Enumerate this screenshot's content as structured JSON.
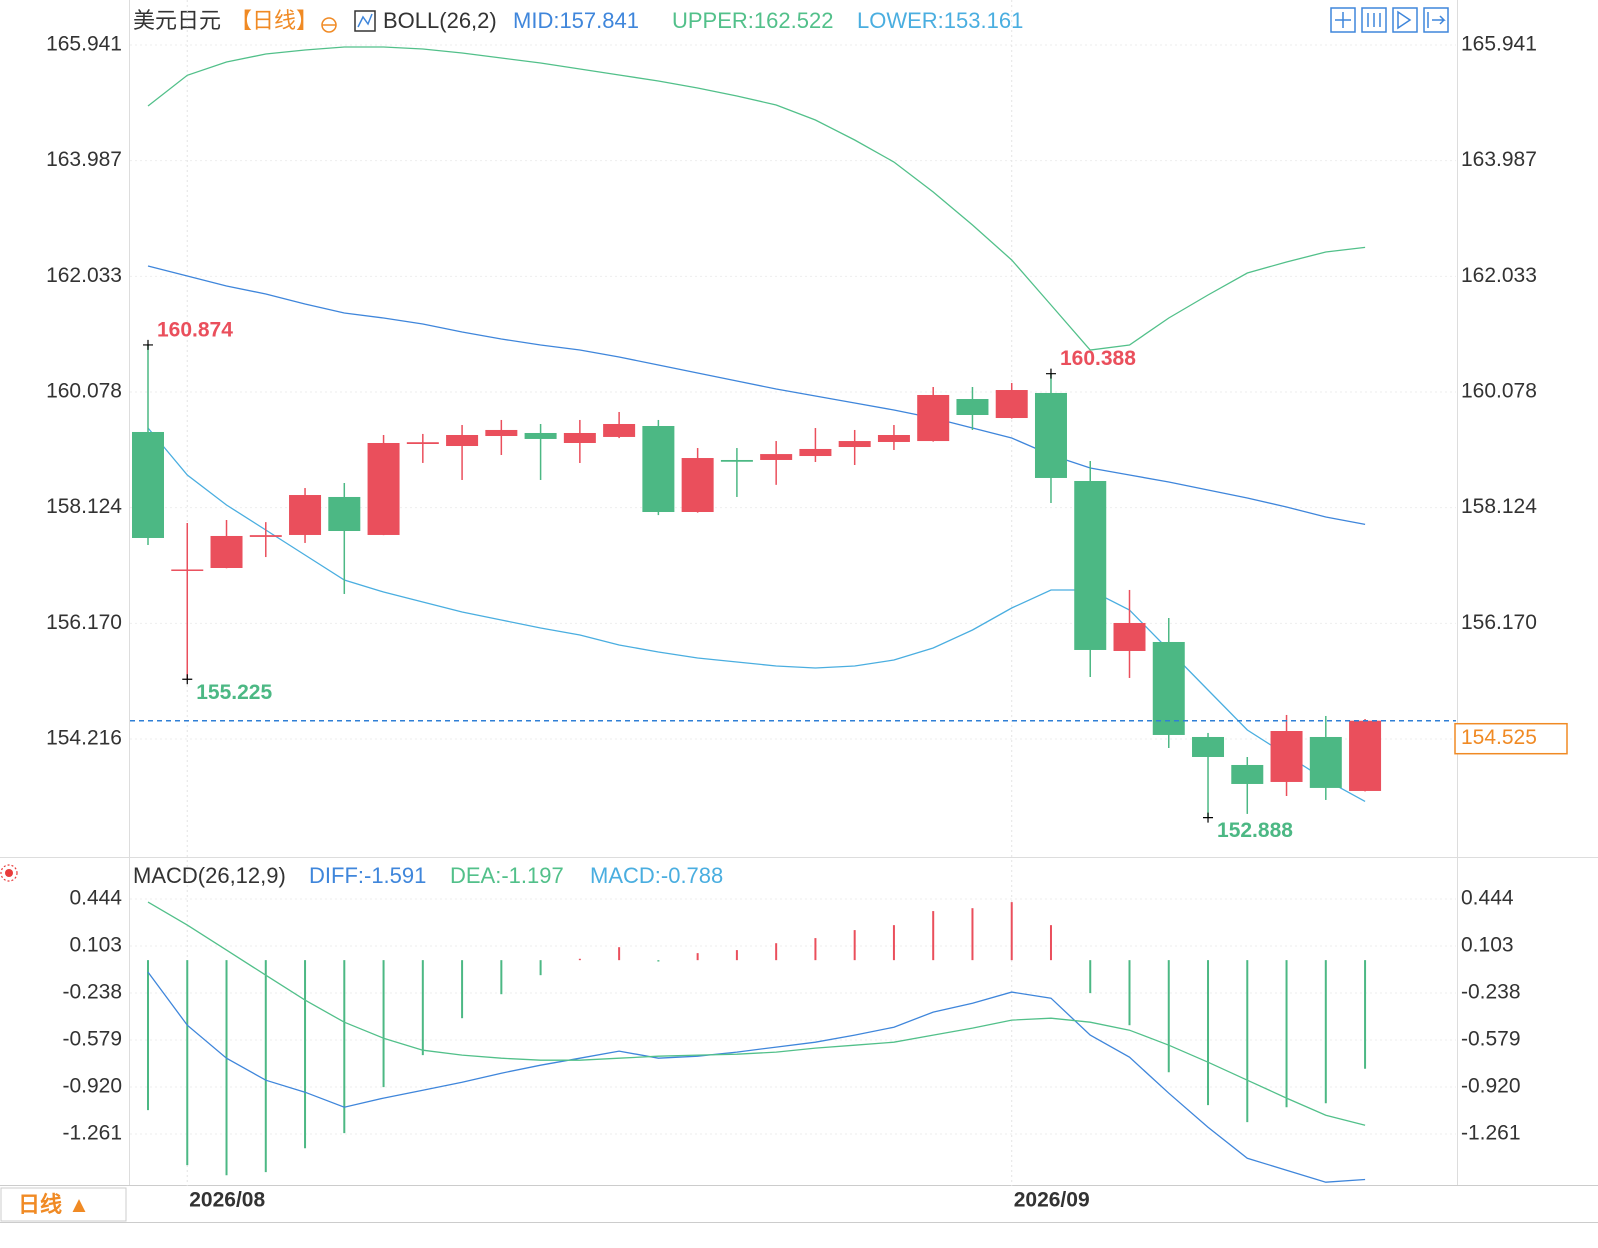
{
  "header": {
    "symbol": "美元日元",
    "period": "【日线】"
  },
  "chart_data": [
    {
      "type": "candlestick",
      "indicator": "BOLL(26,2)",
      "categories": [
        null,
        "2026/08",
        null,
        null,
        null,
        null,
        null,
        null,
        null,
        null,
        null,
        null,
        null,
        null,
        null,
        null,
        null,
        null,
        null,
        null,
        null,
        null,
        "2026/09",
        null,
        null,
        null,
        null,
        null,
        null,
        null,
        null,
        null
      ],
      "open": [
        159.403,
        157.06,
        157.105,
        157.63,
        157.663,
        158.305,
        157.663,
        159.2,
        159.166,
        159.335,
        159.386,
        159.217,
        159.319,
        159.504,
        158.051,
        158.93,
        158.93,
        158.997,
        159.149,
        159.234,
        159.25,
        159.96,
        159.639,
        160.062,
        158.575,
        155.703,
        155.855,
        154.25,
        153.777,
        153.49,
        154.25,
        153.338
      ],
      "high": [
        160.874,
        157.865,
        157.916,
        157.88,
        158.456,
        158.541,
        159.352,
        159.37,
        159.521,
        159.606,
        159.538,
        159.606,
        159.741,
        159.606,
        159.132,
        159.132,
        159.25,
        159.47,
        159.437,
        159.521,
        160.163,
        160.163,
        160.231,
        160.388,
        158.913,
        156.734,
        156.26,
        154.318,
        153.912,
        154.622,
        154.605,
        154.554
      ],
      "low": [
        157.494,
        155.225,
        157.1,
        157.29,
        157.528,
        156.666,
        157.66,
        158.88,
        158.592,
        159.014,
        158.592,
        158.879,
        159.3,
        157.999,
        158.04,
        158.305,
        158.51,
        158.896,
        158.845,
        159.099,
        159.24,
        159.437,
        159.63,
        158.203,
        155.264,
        155.247,
        154.064,
        152.888,
        152.95,
        153.253,
        153.186,
        153.33
      ],
      "close": [
        157.612,
        157.08,
        157.646,
        157.66,
        158.338,
        157.73,
        159.217,
        159.23,
        159.352,
        159.437,
        159.285,
        159.386,
        159.538,
        158.051,
        158.963,
        158.9,
        159.03,
        159.116,
        159.25,
        159.352,
        160.028,
        159.69,
        160.112,
        158.626,
        155.72,
        156.176,
        154.284,
        153.912,
        153.456,
        154.351,
        153.389,
        154.525
      ],
      "up_color": "#ea4f5c",
      "down_color": "#4cb884",
      "series": [
        {
          "name": "MID:157.841",
          "color": "#3f86db",
          "values": [
            162.207,
            162.038,
            161.869,
            161.734,
            161.565,
            161.413,
            161.329,
            161.227,
            161.092,
            160.974,
            160.873,
            160.788,
            160.67,
            160.535,
            160.399,
            160.264,
            160.129,
            160.011,
            159.893,
            159.774,
            159.639,
            159.47,
            159.301,
            159.014,
            158.794,
            158.676,
            158.558,
            158.423,
            158.288,
            158.136,
            157.967,
            157.841
          ]
        },
        {
          "name": "UPPER:162.522",
          "color": "#52c08a",
          "values": [
            164.91,
            165.43,
            165.654,
            165.789,
            165.857,
            165.907,
            165.907,
            165.873,
            165.806,
            165.721,
            165.637,
            165.536,
            165.434,
            165.333,
            165.215,
            165.08,
            164.927,
            164.674,
            164.336,
            163.964,
            163.458,
            162.9,
            162.309,
            161.548,
            160.788,
            160.873,
            161.329,
            161.717,
            162.089,
            162.275,
            162.444,
            162.522
          ]
        },
        {
          "name": "LOWER:153.161",
          "color": "#4aaee0",
          "values": [
            159.47,
            158.676,
            158.17,
            157.747,
            157.325,
            156.903,
            156.7,
            156.531,
            156.362,
            156.227,
            156.092,
            155.973,
            155.804,
            155.686,
            155.585,
            155.517,
            155.449,
            155.416,
            155.449,
            155.55,
            155.753,
            156.058,
            156.429,
            156.733,
            156.733,
            156.395,
            155.72,
            155.044,
            154.368,
            153.946,
            153.523,
            153.161
          ]
        }
      ],
      "ylim": [
        152.256,
        166.617
      ],
      "yticks": [
        165.941,
        163.987,
        162.033,
        160.078,
        158.124,
        {
          "value": 156.17,
          "label": "156.170"
        },
        154.216
      ],
      "grid": true
    },
    {
      "type": "macd",
      "indicator": "MACD(26,12,9)",
      "histogram": {
        "name": "MACD:-0.788",
        "up_color": "#ea4f5c",
        "down_color": "#4cb884",
        "values": [
          -1.088,
          -1.487,
          -1.56,
          -1.538,
          -1.364,
          -1.255,
          -0.921,
          -0.689,
          -0.421,
          -0.247,
          -0.109,
          0.01,
          0.094,
          -0.01,
          0.051,
          0.073,
          0.123,
          0.16,
          0.218,
          0.254,
          0.356,
          0.377,
          0.421,
          0.254,
          -0.239,
          -0.472,
          -0.813,
          -1.052,
          -1.175,
          -1.067,
          -1.038,
          -0.788
        ]
      },
      "series": [
        {
          "name": "DIFF:-1.591",
          "color": "#3f86db",
          "values": [
            -0.087,
            -0.472,
            -0.711,
            -0.871,
            -0.958,
            -1.067,
            -1.001,
            -0.943,
            -0.885,
            -0.82,
            -0.762,
            -0.711,
            -0.66,
            -0.711,
            -0.697,
            -0.667,
            -0.631,
            -0.595,
            -0.544,
            -0.486,
            -0.377,
            -0.312,
            -0.232,
            -0.276,
            -0.544,
            -0.704,
            -0.965,
            -1.212,
            -1.437,
            -1.524,
            -1.611,
            -1.591
          ]
        },
        {
          "name": "DEA:-1.197",
          "color": "#52c08a",
          "values": [
            0.421,
            0.254,
            0.073,
            -0.109,
            -0.29,
            -0.45,
            -0.566,
            -0.653,
            -0.689,
            -0.711,
            -0.726,
            -0.726,
            -0.711,
            -0.697,
            -0.689,
            -0.682,
            -0.667,
            -0.638,
            -0.617,
            -0.595,
            -0.544,
            -0.493,
            -0.435,
            -0.421,
            -0.45,
            -0.508,
            -0.617,
            -0.74,
            -0.871,
            -1.001,
            -1.125,
            -1.197
          ]
        }
      ],
      "ylim": [
        -1.631,
        0.741
      ],
      "yticks": [
        0.444,
        0.103,
        -0.238,
        -0.579,
        {
          "value": -0.92,
          "label": "-0.920"
        },
        -1.261
      ],
      "grid": true
    }
  ],
  "footer": {
    "period_button": "日线 ▲"
  }
}
